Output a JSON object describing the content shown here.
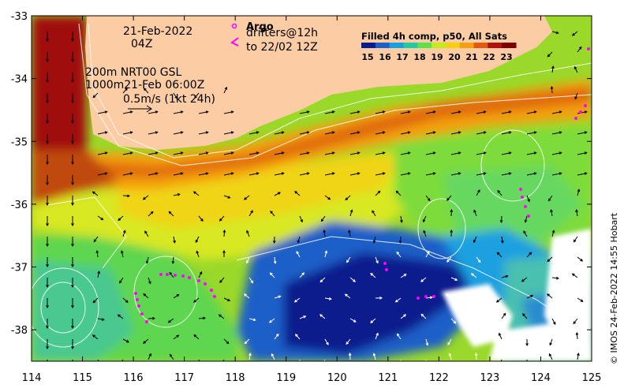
{
  "map": {
    "lon_range": [
      114,
      125
    ],
    "lat_range": [
      -38.5,
      -33
    ],
    "x_ticks": [
      "114",
      "115",
      "116",
      "117",
      "118",
      "119",
      "120",
      "121",
      "122",
      "123",
      "124",
      "125"
    ],
    "y_ticks": [
      "-33",
      "-34",
      "-35",
      "-36",
      "-37",
      "-38"
    ],
    "land_color": "#fccca4",
    "frame_color": "#000000"
  },
  "annotations": {
    "date": "21-Feb-2022",
    "hour": "04Z",
    "vel_line1": "200m  NRT00 GSL",
    "vel_line2": "1000m21-Feb 06:00Z",
    "scale_label": "0.5m/s (1kt 24h)"
  },
  "legend": {
    "argo_label": "Argo",
    "drifters_label": "drifters@12h",
    "drifters_to": "to 22/02 12Z",
    "argo_color": "#ff00ff"
  },
  "colorbar": {
    "title": "Filled 4h comp, p50, All Sats",
    "labels": [
      "15",
      "16",
      "17",
      "18",
      "19",
      "20",
      "21",
      "22",
      "23"
    ],
    "colors": [
      "#0b1a8c",
      "#1f5fc8",
      "#1aa0e0",
      "#23c9a0",
      "#5ee04a",
      "#c8e81c",
      "#f4d010",
      "#f4a010",
      "#e05a10",
      "#b01010",
      "#7a0000"
    ]
  },
  "credit": "© IMOS 24-Feb-2022 14:55 Hobart"
}
